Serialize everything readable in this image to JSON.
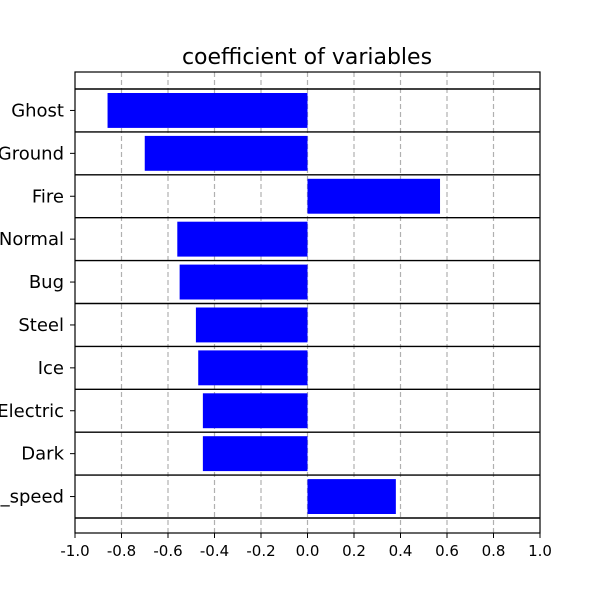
{
  "chart_data": {
    "type": "bar",
    "orientation": "horizontal",
    "title": "coefficient of variables",
    "xlabel": "",
    "ylabel": "",
    "categories": [
      "Ghost",
      "Ground",
      "Fire",
      "Normal",
      "Bug",
      "Steel",
      "Ice",
      "Electric",
      "Dark",
      "_speed"
    ],
    "values": [
      -0.86,
      -0.7,
      0.57,
      -0.56,
      -0.55,
      -0.48,
      -0.47,
      -0.45,
      -0.45,
      0.38
    ],
    "xlim": [
      -1.0,
      1.0
    ],
    "xticks": [
      "-1.0",
      "-0.8",
      "-0.6",
      "-0.4",
      "-0.2",
      "0.0",
      "0.2",
      "0.4",
      "0.6",
      "0.8",
      "1.0"
    ],
    "grid": "vertical dashed",
    "legend": "none",
    "bar_color": "#0000ff",
    "grid_color": "#b0b0b0"
  }
}
